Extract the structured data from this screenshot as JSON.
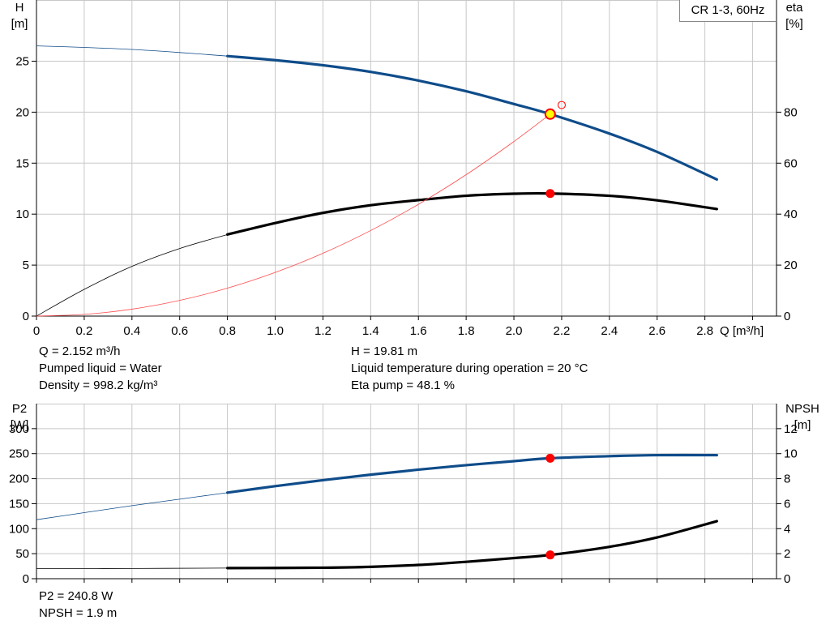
{
  "legend_label": "CR 1-3, 60Hz",
  "top_axes": {
    "x_label": "Q [m³/h]",
    "y_left_label_line1": "H",
    "y_left_label_line2": "[m]",
    "y_right_label_line1": "eta",
    "y_right_label_line2": "[%]"
  },
  "bottom_axes": {
    "y_left_label_line1": "P2",
    "y_left_label_line2": "[W]",
    "y_right_label_line1": "NPSH",
    "y_right_label_line2": "[m]"
  },
  "info_top": {
    "q": "Q = 2.152 m³/h",
    "liquid": "Pumped liquid = Water",
    "density": "Density = 998.2 kg/m³",
    "h": "H = 19.81 m",
    "temp": "Liquid temperature during operation = 20 °C",
    "eta": "Eta pump = 48.1 %"
  },
  "info_bottom": {
    "p2": "P2 = 240.8 W",
    "npsh": "NPSH = 1.9 m"
  },
  "colors": {
    "head_curve": "#0f4c8a",
    "eta_curve": "#000000",
    "system_curve": "#ff4b4b",
    "duty_point": "#ff0000",
    "duty_point_head_fill": "#ffff00",
    "grid": "#c8c8c8"
  },
  "chart_data": [
    {
      "type": "line",
      "title": "",
      "xlabel": "Q [m³/h]",
      "ylabel": "H [m]",
      "y2label": "eta [%]",
      "xlim": [
        0,
        3.1
      ],
      "ylim": [
        0,
        31
      ],
      "y2lim": [
        0,
        124
      ],
      "xticks": [
        0,
        0.2,
        0.4,
        0.6,
        0.8,
        1.0,
        1.2,
        1.4,
        1.6,
        1.8,
        2.0,
        2.2,
        2.4,
        2.6,
        2.8
      ],
      "xtick_labels": [
        "0",
        "0.2",
        "0.4",
        "0.6",
        "0.8",
        "1.0",
        "1.2",
        "1.4",
        "1.6",
        "1.8",
        "2.0",
        "2.2",
        "2.4",
        "2.6",
        "2.8"
      ],
      "yticks": [
        0,
        5,
        10,
        15,
        20,
        25
      ],
      "ytick_labels": [
        "0",
        "5",
        "10",
        "15",
        "20",
        "25"
      ],
      "y2ticks": [
        0,
        20,
        40,
        60,
        80
      ],
      "y2tick_labels": [
        "0",
        "20",
        "40",
        "60",
        "80"
      ],
      "grid": true,
      "series": [
        {
          "axis": "left",
          "x": [
            0,
            0.2,
            0.4,
            0.6,
            0.8,
            1.0,
            1.2,
            1.4,
            1.6,
            1.8,
            2.0,
            2.152,
            2.4,
            2.6,
            2.85
          ],
          "y": [
            26.5,
            26.35,
            26.15,
            25.85,
            25.5,
            25.1,
            24.6,
            23.95,
            23.1,
            22.05,
            20.8,
            19.81,
            17.9,
            16.1,
            13.4
          ],
          "thin_until": 0.8
        },
        {
          "axis": "right",
          "x": [
            0,
            0.2,
            0.4,
            0.6,
            0.8,
            1.0,
            1.2,
            1.4,
            1.6,
            1.8,
            2.0,
            2.152,
            2.4,
            2.6,
            2.85
          ],
          "y": [
            0,
            10.5,
            19.5,
            26.5,
            32,
            36.5,
            40.5,
            43.5,
            45.5,
            47.2,
            48.0,
            48.1,
            47.2,
            45.4,
            42
          ],
          "thin_until": 0.8
        },
        {
          "axis": "left",
          "x": [
            0,
            0.2,
            0.4,
            0.6,
            0.8,
            1.0,
            1.2,
            1.4,
            1.6,
            1.8,
            2.0,
            2.152
          ],
          "y": [
            0,
            0.17,
            0.68,
            1.54,
            2.74,
            4.28,
            6.16,
            8.39,
            10.96,
            13.87,
            17.12,
            19.81
          ],
          "thin_until": 3.0
        }
      ],
      "duty_points": [
        {
          "axis": "left",
          "x": 2.152,
          "y": 19.81,
          "style": "filled_yellow"
        },
        {
          "axis": "right",
          "x": 2.152,
          "y": 48.1,
          "style": "filled_red"
        },
        {
          "axis": "left",
          "x": 2.2,
          "y": 20.7,
          "style": "open_red"
        }
      ]
    },
    {
      "type": "line",
      "title": "",
      "xlabel": "",
      "ylabel": "P2 [W]",
      "y2label": "NPSH [m]",
      "xlim": [
        0,
        3.1
      ],
      "ylim": [
        0,
        350
      ],
      "y2lim": [
        0,
        14
      ],
      "yticks": [
        0,
        50,
        100,
        150,
        200,
        250,
        300
      ],
      "ytick_labels": [
        "0",
        "50",
        "100",
        "150",
        "200",
        "250",
        "300"
      ],
      "y2ticks": [
        0,
        2,
        4,
        6,
        8,
        10,
        12
      ],
      "y2tick_labels": [
        "0",
        "2",
        "4",
        "6",
        "8",
        "10",
        "12"
      ],
      "grid": true,
      "series": [
        {
          "axis": "left",
          "x": [
            0,
            0.2,
            0.4,
            0.6,
            0.8,
            1.0,
            1.2,
            1.4,
            1.6,
            1.8,
            2.0,
            2.152,
            2.4,
            2.6,
            2.85
          ],
          "y": [
            118,
            132,
            146,
            159,
            172,
            185,
            197,
            208,
            218,
            227,
            235,
            240.8,
            245,
            247,
            247
          ],
          "thin_until": 0.8
        },
        {
          "axis": "right",
          "x": [
            0,
            0.4,
            0.8,
            1.0,
            1.2,
            1.4,
            1.6,
            1.8,
            2.0,
            2.152,
            2.4,
            2.6,
            2.85
          ],
          "y": [
            0.8,
            0.82,
            0.85,
            0.86,
            0.88,
            0.95,
            1.1,
            1.35,
            1.65,
            1.9,
            2.55,
            3.3,
            4.6
          ],
          "thin_until": 0.8
        }
      ],
      "duty_points": [
        {
          "axis": "left",
          "x": 2.152,
          "y": 240.8,
          "style": "filled_red"
        },
        {
          "axis": "right",
          "x": 2.152,
          "y": 1.9,
          "style": "filled_red"
        }
      ]
    }
  ]
}
